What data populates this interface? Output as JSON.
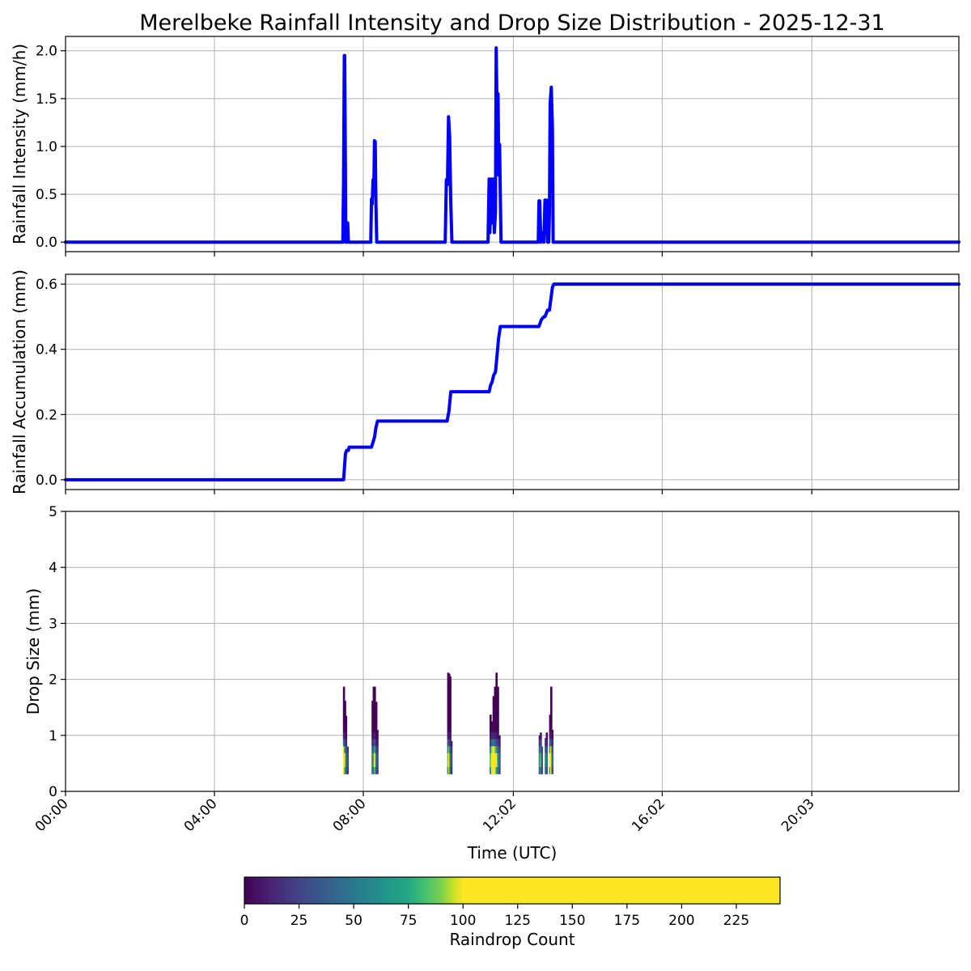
{
  "title": "Merelbeke Rainfall Intensity and Drop Size Distribution - 2025-12-31",
  "colors": {
    "line": "#0000ff",
    "grid": "#b0b0b0"
  },
  "chart_data": [
    {
      "type": "line",
      "name": "intensity",
      "ylabel": "Rainfall Intensity (mm/h)",
      "xlabel": "",
      "xlim": [
        0,
        24
      ],
      "ylim": [
        -0.1,
        2.15
      ],
      "yticks": [
        "0.0",
        "0.5",
        "1.0",
        "1.5",
        "2.0"
      ],
      "ytick_values": [
        0,
        0.5,
        1.0,
        1.5,
        2.0
      ],
      "grid": true,
      "x": [
        0,
        7.45,
        7.47,
        7.49,
        7.5,
        7.52,
        7.53,
        7.55,
        7.57,
        7.58,
        7.6,
        7.62,
        7.64,
        8.2,
        8.22,
        8.24,
        8.26,
        8.28,
        8.3,
        8.32,
        8.34,
        8.36,
        8.4,
        8.42,
        10.2,
        10.23,
        10.26,
        10.29,
        10.32,
        10.35,
        10.38,
        10.4,
        11.35,
        11.38,
        11.4,
        11.43,
        11.46,
        11.49,
        11.52,
        11.55,
        11.57,
        11.6,
        11.62,
        11.64,
        11.66,
        11.68,
        11.7,
        11.72,
        11.75,
        12.7,
        12.72,
        12.74,
        12.77,
        12.8,
        12.85,
        12.88,
        12.92,
        12.95,
        12.98,
        13.0,
        13.02,
        13.05,
        13.08,
        13.1,
        24
      ],
      "y": [
        0,
        0,
        0.65,
        1.95,
        1.95,
        0.7,
        0,
        0,
        0.2,
        0.2,
        0,
        0,
        0,
        0,
        0.45,
        0.4,
        0.65,
        0.5,
        1.06,
        1.05,
        0.4,
        0,
        0,
        0,
        0,
        0.65,
        0.6,
        1.31,
        1.1,
        0.4,
        0,
        0,
        0,
        0.66,
        0.1,
        0.66,
        0.2,
        0.66,
        0.1,
        0.3,
        2.03,
        1.2,
        1.55,
        0.7,
        1.02,
        0.5,
        0,
        0,
        0,
        0,
        0.43,
        0.43,
        0,
        0.1,
        0,
        0.44,
        0.44,
        0,
        0,
        0.3,
        1.45,
        1.62,
        1.2,
        0,
        0
      ]
    },
    {
      "type": "line",
      "name": "accumulation",
      "ylabel": "Rainfall Accumulation (mm)",
      "xlabel": "",
      "xlim": [
        0,
        24
      ],
      "ylim": [
        -0.03,
        0.63
      ],
      "yticks": [
        "0.0",
        "0.2",
        "0.4",
        "0.6"
      ],
      "ytick_values": [
        0,
        0.2,
        0.4,
        0.6
      ],
      "grid": true,
      "x": [
        0,
        7.47,
        7.49,
        7.52,
        7.55,
        7.6,
        7.62,
        8.22,
        8.3,
        8.34,
        8.38,
        10.25,
        10.3,
        10.35,
        11.38,
        11.42,
        11.46,
        11.5,
        11.55,
        11.6,
        11.63,
        11.68,
        11.75,
        12.72,
        12.78,
        12.85,
        12.88,
        12.95,
        13.0,
        13.08,
        13.12,
        24
      ],
      "y": [
        0,
        0,
        0.03,
        0.08,
        0.09,
        0.09,
        0.1,
        0.1,
        0.13,
        0.16,
        0.18,
        0.18,
        0.21,
        0.27,
        0.27,
        0.29,
        0.3,
        0.32,
        0.33,
        0.39,
        0.43,
        0.47,
        0.47,
        0.47,
        0.49,
        0.5,
        0.5,
        0.52,
        0.52,
        0.59,
        0.6,
        0.6
      ]
    },
    {
      "type": "heatmap",
      "name": "dsd",
      "ylabel": "Drop Size (mm)",
      "xlabel": "Time (UTC)",
      "xlim": [
        0,
        24
      ],
      "ylim": [
        0,
        5
      ],
      "yticks": [
        "0",
        "1",
        "2",
        "3",
        "4",
        "5"
      ],
      "ytick_values": [
        0,
        1,
        2,
        3,
        4,
        5
      ],
      "xticks": [
        "00:00",
        "04:00",
        "08:00",
        "12:02",
        "16:02",
        "20:03"
      ],
      "xtick_values": [
        0,
        4.0,
        8.0,
        12.03,
        16.03,
        20.05
      ],
      "grid": true,
      "columns": [
        {
          "t": 7.48,
          "top": 1.87,
          "peak": 160
        },
        {
          "t": 7.51,
          "top": 1.62,
          "peak": 120
        },
        {
          "t": 7.54,
          "top": 1.35,
          "peak": 60
        },
        {
          "t": 7.58,
          "top": 0.8,
          "peak": 30
        },
        {
          "t": 8.25,
          "top": 1.62,
          "peak": 50
        },
        {
          "t": 8.28,
          "top": 1.87,
          "peak": 80
        },
        {
          "t": 8.31,
          "top": 1.87,
          "peak": 120
        },
        {
          "t": 8.35,
          "top": 1.6,
          "peak": 60
        },
        {
          "t": 8.38,
          "top": 1.1,
          "peak": 30
        },
        {
          "t": 10.28,
          "top": 2.12,
          "peak": 90
        },
        {
          "t": 10.31,
          "top": 2.1,
          "peak": 140
        },
        {
          "t": 10.34,
          "top": 2.05,
          "peak": 70
        },
        {
          "t": 10.37,
          "top": 0.9,
          "peak": 30
        },
        {
          "t": 11.42,
          "top": 1.37,
          "peak": 90
        },
        {
          "t": 11.46,
          "top": 1.25,
          "peak": 150
        },
        {
          "t": 11.5,
          "top": 1.7,
          "peak": 200
        },
        {
          "t": 11.54,
          "top": 1.87,
          "peak": 150
        },
        {
          "t": 11.58,
          "top": 2.12,
          "peak": 110
        },
        {
          "t": 11.62,
          "top": 1.87,
          "peak": 80
        },
        {
          "t": 11.66,
          "top": 1.0,
          "peak": 40
        },
        {
          "t": 12.74,
          "top": 1.0,
          "peak": 60
        },
        {
          "t": 12.77,
          "top": 1.05,
          "peak": 90
        },
        {
          "t": 12.8,
          "top": 0.8,
          "peak": 40
        },
        {
          "t": 12.9,
          "top": 0.95,
          "peak": 70
        },
        {
          "t": 12.93,
          "top": 1.05,
          "peak": 50
        },
        {
          "t": 13.02,
          "top": 1.37,
          "peak": 110
        },
        {
          "t": 13.05,
          "top": 1.87,
          "peak": 160
        },
        {
          "t": 13.08,
          "top": 1.1,
          "peak": 50
        }
      ]
    }
  ],
  "colorbar": {
    "label": "Raindrop Count",
    "range": [
      0,
      245
    ],
    "saturation": 100,
    "ticks": [
      "0",
      "25",
      "50",
      "75",
      "100",
      "125",
      "150",
      "175",
      "200",
      "225"
    ],
    "tick_values": [
      0,
      25,
      50,
      75,
      100,
      125,
      150,
      175,
      200,
      225
    ]
  }
}
